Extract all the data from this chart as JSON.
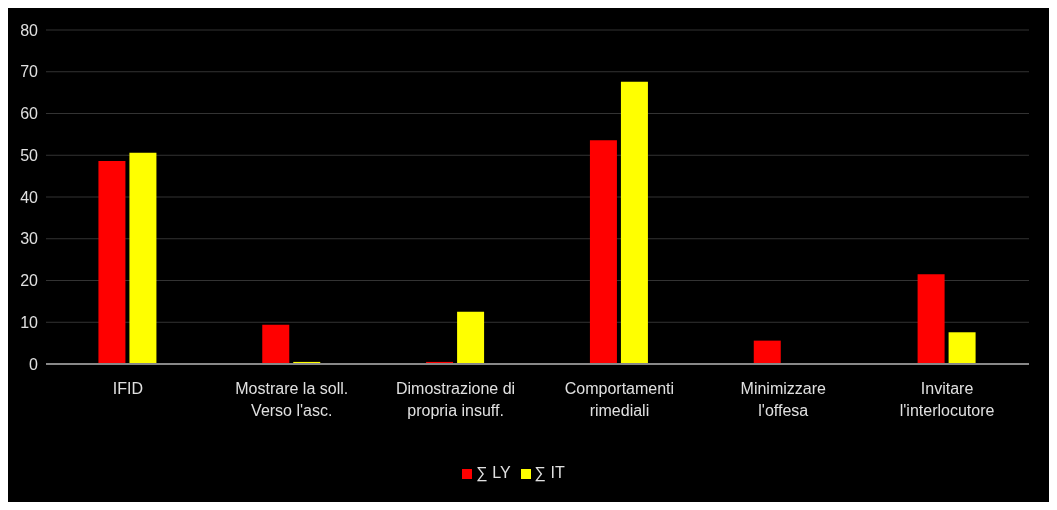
{
  "chart_data": {
    "type": "bar",
    "categories": [
      "IFID",
      "Mostrare la soll. Verso l'asc.",
      "Dimostrazione di propria insuff.",
      "Comportamenti rimediali",
      "Minimizzare l'offesa",
      "Invitare l'interlocutore"
    ],
    "series": [
      {
        "name": "∑ LY",
        "color": "#ff0000",
        "values": [
          48.6,
          9.4,
          0.5,
          53.6,
          5.6,
          21.5
        ]
      },
      {
        "name": "∑ IT",
        "color": "#ffff00",
        "values": [
          50.6,
          0.5,
          12.5,
          67.6,
          0,
          7.6
        ]
      }
    ],
    "ylim": [
      0,
      80
    ],
    "yticks": [
      0,
      10,
      20,
      30,
      40,
      50,
      60,
      70,
      80
    ],
    "grid": "y",
    "legend": "bottom"
  }
}
